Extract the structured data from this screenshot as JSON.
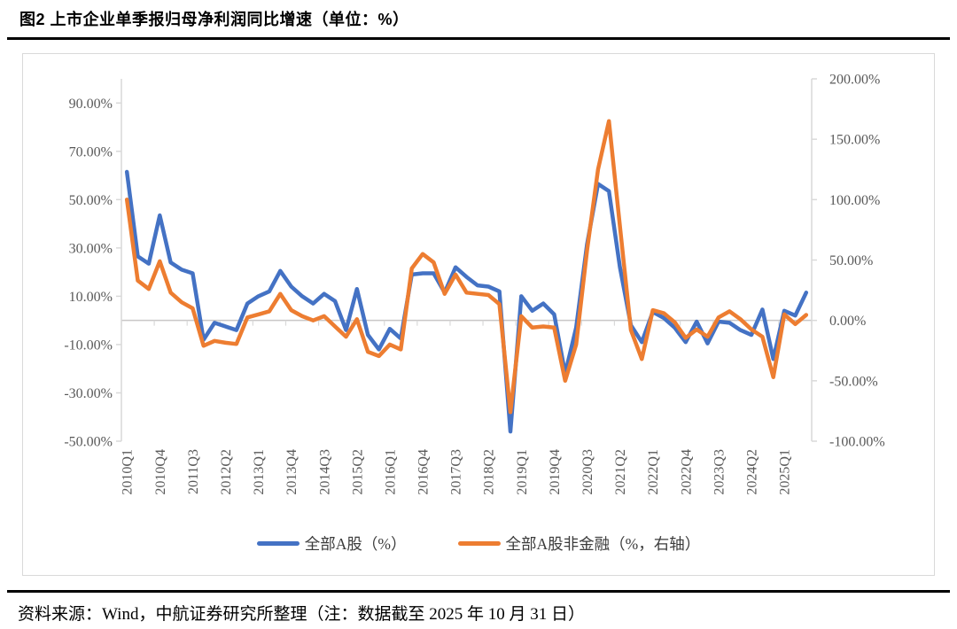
{
  "title": "图2  上市企业单季报归母净利润同比增速（单位：%）",
  "source_note": "资料来源：Wind，中航证券研究所整理（注：数据截至 2025 年 10 月 31 日）",
  "legend": [
    {
      "label": "全部A股（%）",
      "color": "#4472C4"
    },
    {
      "label": "全部A股非金融（%，右轴）",
      "color": "#ED7D31"
    }
  ],
  "colors": {
    "blue_series": "#4472C4",
    "orange_series": "#ED7D31",
    "axis_line": "#d9d9d9",
    "zero_line": "#c9c7c7",
    "axis_text": "#595959",
    "frame_border": "#d9d9d9",
    "rule": "#000000"
  },
  "chart_data": {
    "type": "line",
    "title": "上市企业单季报归母净利润同比增速（单位：%）",
    "x": [
      "2010Q1",
      "2010Q2",
      "2010Q3",
      "2010Q4",
      "2011Q1",
      "2011Q2",
      "2011Q3",
      "2011Q4",
      "2012Q1",
      "2012Q2",
      "2012Q3",
      "2012Q4",
      "2013Q1",
      "2013Q2",
      "2013Q3",
      "2013Q4",
      "2014Q1",
      "2014Q2",
      "2014Q3",
      "2014Q4",
      "2015Q1",
      "2015Q2",
      "2015Q3",
      "2015Q4",
      "2016Q1",
      "2016Q2",
      "2016Q3",
      "2016Q4",
      "2017Q1",
      "2017Q2",
      "2017Q3",
      "2017Q4",
      "2018Q1",
      "2018Q2",
      "2018Q3",
      "2018Q4",
      "2019Q1",
      "2019Q2",
      "2019Q3",
      "2019Q4",
      "2020Q1",
      "2020Q2",
      "2020Q3",
      "2020Q4",
      "2021Q1",
      "2021Q2",
      "2021Q3",
      "2021Q4",
      "2022Q1",
      "2022Q2",
      "2022Q3",
      "2022Q4",
      "2023Q1",
      "2023Q2",
      "2023Q3",
      "2023Q4",
      "2024Q1",
      "2024Q2",
      "2024Q3",
      "2024Q4",
      "2025Q1",
      "2025Q2",
      "2025Q3"
    ],
    "x_tick_interval": 3,
    "series": [
      {
        "name": "全部A股（%）",
        "axis": "left",
        "color": "#4472C4",
        "values": [
          61.5,
          26.5,
          23.5,
          43.5,
          24,
          21,
          19.5,
          -8,
          -1,
          -2.5,
          -4,
          7,
          10,
          12,
          20.5,
          14,
          10,
          7,
          11,
          8,
          -4,
          13,
          -6,
          -12,
          -3.5,
          -7.5,
          19,
          19.5,
          19.5,
          11.5,
          22,
          18,
          14.5,
          14,
          12,
          -46,
          10,
          4,
          7,
          2.5,
          -22,
          -3,
          31.5,
          56.5,
          53.5,
          22,
          -2,
          -9,
          3.5,
          1,
          -3,
          -9,
          -0.5,
          -9.5,
          -0.5,
          -1,
          -4,
          -6,
          4.5,
          -16,
          4,
          2,
          11.5
        ]
      },
      {
        "name": "全部A股非金融（%，右轴）",
        "axis": "right",
        "color": "#ED7D31",
        "values": [
          100,
          33,
          26,
          49,
          23,
          15,
          10,
          -21,
          -17,
          -18.5,
          -19.5,
          2.5,
          5,
          7.5,
          22,
          8.5,
          3.5,
          0,
          3.5,
          -5,
          -13.5,
          1,
          -26,
          -29.5,
          -20,
          -24,
          43,
          55,
          48,
          22,
          38,
          23,
          22,
          21,
          13.5,
          -76,
          3.5,
          -6,
          -5,
          -6,
          -50,
          -20,
          58,
          125,
          165,
          78,
          -8,
          -32,
          8.5,
          6,
          -1.5,
          -14.5,
          -7.5,
          -13.5,
          2.5,
          7.5,
          1,
          -7.5,
          -13.5,
          -47,
          5,
          -3,
          4.5
        ]
      }
    ],
    "left_axis": {
      "min": -50,
      "max": 100,
      "ticks": [
        "90.00%",
        "70.00%",
        "50.00%",
        "30.00%",
        "10.00%",
        "-10.00%",
        "-30.00%",
        "-50.00%"
      ],
      "tick_values": [
        90,
        70,
        50,
        30,
        10,
        -10,
        -30,
        -50
      ]
    },
    "right_axis": {
      "min": -100,
      "max": 200,
      "ticks": [
        "200.00%",
        "150.00%",
        "100.00%",
        "50.00%",
        "0.00%",
        "-50.00%",
        "-100.00%"
      ],
      "tick_values": [
        200,
        150,
        100,
        50,
        0,
        -50,
        -100
      ]
    },
    "grid": "zero-line-only",
    "legend_position": "bottom"
  }
}
